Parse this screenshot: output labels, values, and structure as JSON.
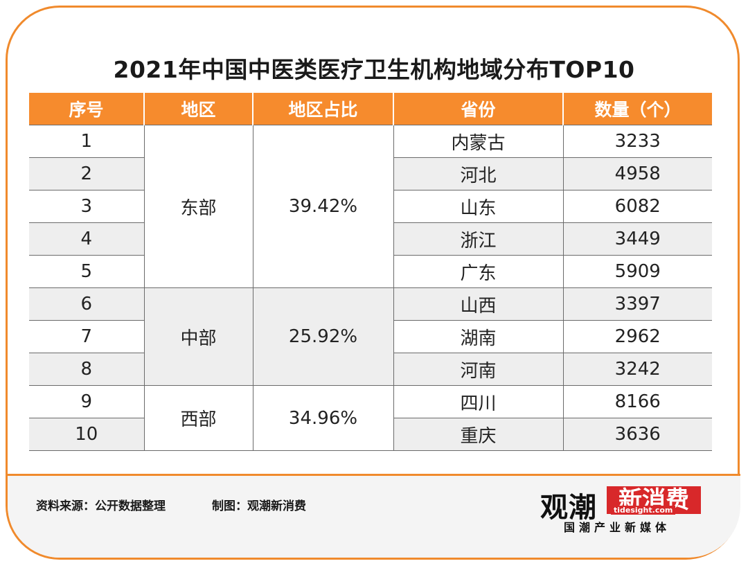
{
  "title": "2021年中国中医类医疗卫生机构地域分布TOP10",
  "table": {
    "headers": [
      "序号",
      "地区",
      "地区占比",
      "省份",
      "数量（个）"
    ],
    "rows": [
      {
        "no": "1",
        "province": "内蒙古",
        "count": "3233"
      },
      {
        "no": "2",
        "province": "河北",
        "count": "4958"
      },
      {
        "no": "3",
        "province": "山东",
        "count": "6082"
      },
      {
        "no": "4",
        "province": "浙江",
        "count": "3449"
      },
      {
        "no": "5",
        "province": "广东",
        "count": "5909"
      },
      {
        "no": "6",
        "province": "山西",
        "count": "3397"
      },
      {
        "no": "7",
        "province": "湖南",
        "count": "2962"
      },
      {
        "no": "8",
        "province": "河南",
        "count": "3242"
      },
      {
        "no": "9",
        "province": "四川",
        "count": "8166"
      },
      {
        "no": "10",
        "province": "重庆",
        "count": "3636"
      }
    ],
    "groups": [
      {
        "region": "东部",
        "ratio": "39.42%"
      },
      {
        "region": "中部",
        "ratio": "25.92%"
      },
      {
        "region": "西部",
        "ratio": "34.96%"
      }
    ]
  },
  "footer": {
    "source": "资料来源：公开数据整理",
    "maker": "制图：观潮新消费"
  },
  "logo": {
    "main": "观潮",
    "box": "新消费",
    "url": "tidesight.com",
    "tagline": "国潮产业新媒体"
  },
  "colors": {
    "accent": "#f68b2d",
    "frame": "#f08a2c",
    "logo_red": "#d8282a"
  }
}
